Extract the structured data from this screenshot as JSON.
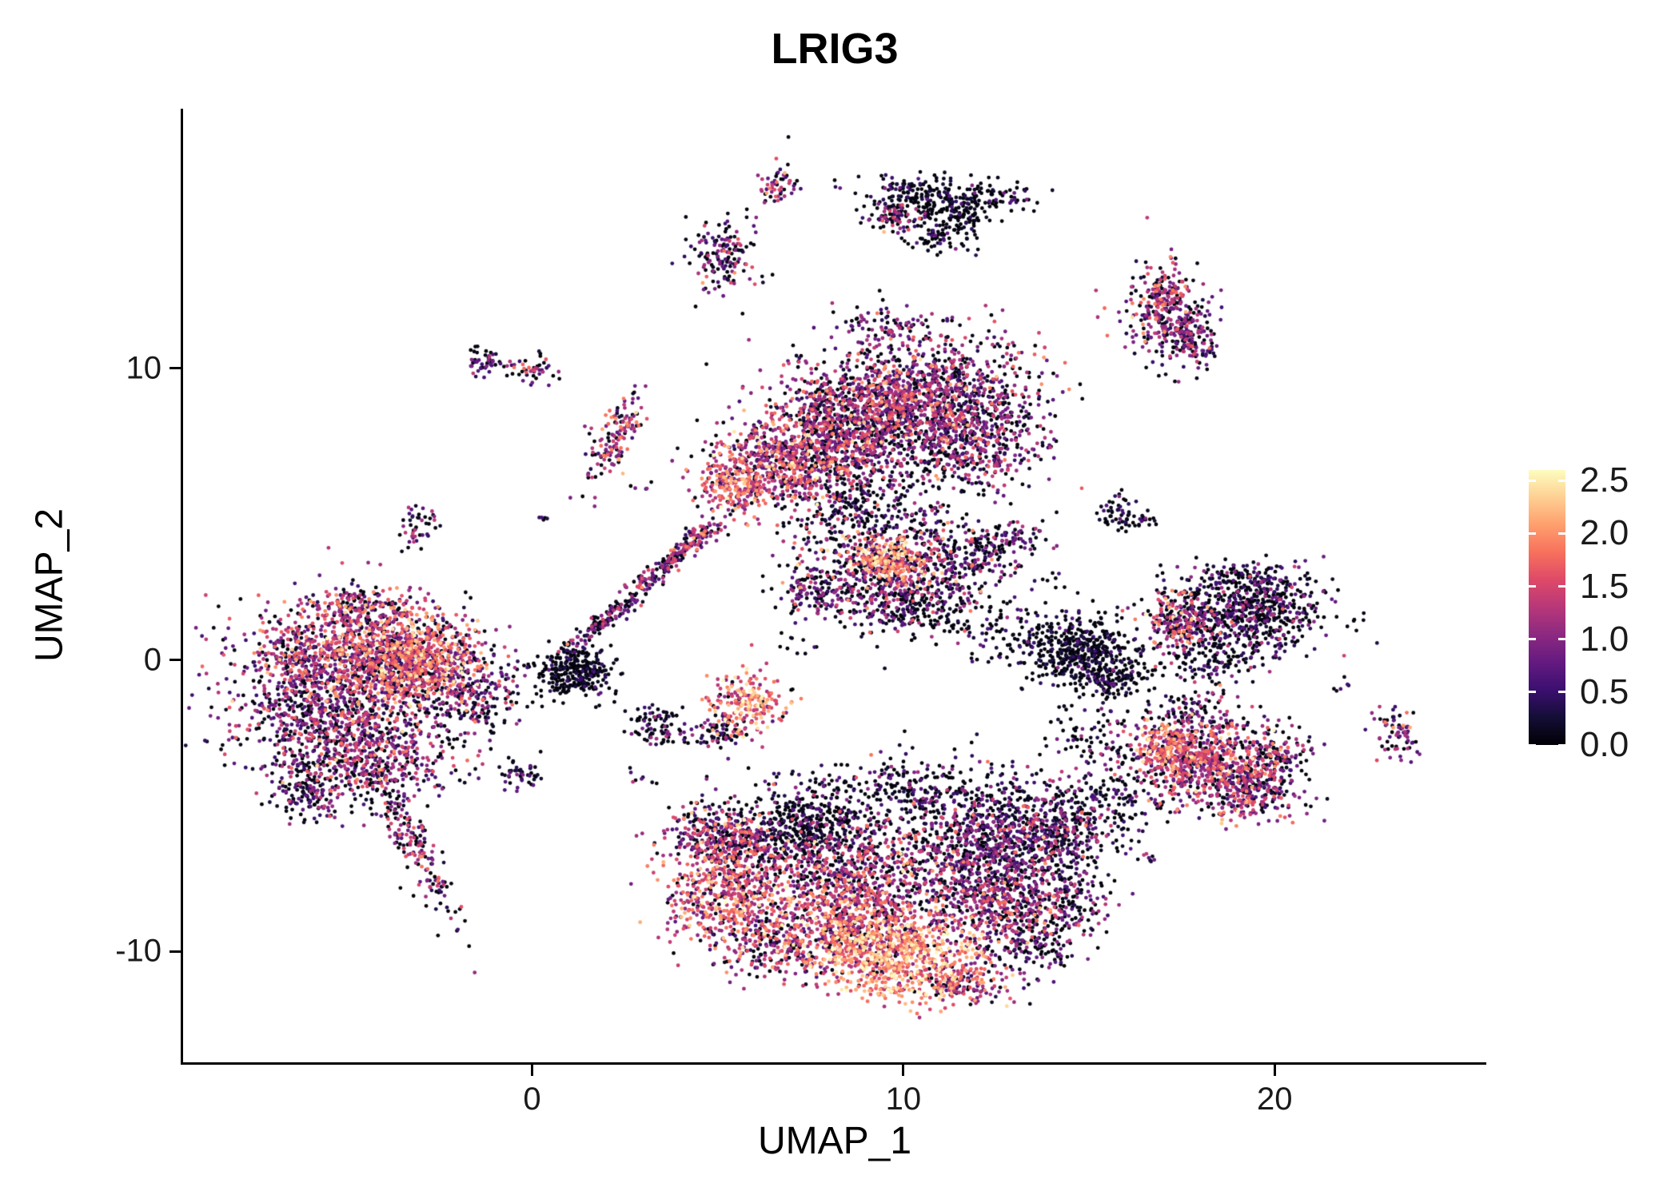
{
  "chart": {
    "title": "LRIG3",
    "xlabel": "UMAP_1",
    "ylabel": "UMAP_2"
  },
  "chart_data": {
    "type": "scatter",
    "title": "LRIG3",
    "subtitle": "",
    "xlabel": "UMAP_1",
    "ylabel": "UMAP_2",
    "xlim": [
      -9.4,
      25.7
    ],
    "ylim": [
      -13.8,
      18.9
    ],
    "x_ticks": [
      0,
      10,
      20
    ],
    "y_ticks": [
      -10,
      0,
      10
    ],
    "grid": false,
    "legend": {
      "position": "right",
      "ticks": [
        "2.5",
        "2.0",
        "1.5",
        "1.0",
        "0.5",
        "0.0"
      ],
      "tick_values": [
        2.5,
        2.0,
        1.5,
        1.0,
        0.5,
        0.0
      ],
      "vmin": 0.0,
      "vmax": 2.6
    },
    "colormap": {
      "name": "magma",
      "stops": [
        "#000004",
        "#140e36",
        "#3b0f70",
        "#641a80",
        "#8c2981",
        "#b73779",
        "#de4968",
        "#f7705c",
        "#fe9f6d",
        "#fecf92",
        "#fcfdbf"
      ]
    },
    "clusters": [
      {
        "name": "left-main-core",
        "cx": -4.8,
        "cy": 0.3,
        "sx": 1.5,
        "sy": 0.95,
        "rot": 0,
        "n": 1100,
        "mean": 1.15,
        "sd": 0.55,
        "zero": 0.22
      },
      {
        "name": "left-main-bright",
        "cx": -3.1,
        "cy": -0.1,
        "sx": 0.9,
        "sy": 0.75,
        "rot": 0,
        "n": 650,
        "mean": 1.55,
        "sd": 0.5,
        "zero": 0.12
      },
      {
        "name": "left-main-lower",
        "cx": -5.6,
        "cy": -1.9,
        "sx": 1.25,
        "sy": 0.95,
        "rot": 0,
        "n": 650,
        "mean": 0.9,
        "sd": 0.5,
        "zero": 0.32
      },
      {
        "name": "left-main-bottom",
        "cx": -4.3,
        "cy": -3.3,
        "sx": 1.15,
        "sy": 0.85,
        "rot": 0,
        "n": 480,
        "mean": 1.0,
        "sd": 0.5,
        "zero": 0.28
      },
      {
        "name": "left-tail-west",
        "cx": -6.0,
        "cy": -4.4,
        "sx": 0.5,
        "sy": 0.55,
        "rot": 0,
        "n": 130,
        "mean": 0.8,
        "sd": 0.45,
        "zero": 0.38
      },
      {
        "name": "left-tail-south",
        "cx": -3.3,
        "cy": -6.1,
        "sx": 1.5,
        "sy": 0.28,
        "rot": -68,
        "n": 210,
        "mean": 0.9,
        "sd": 0.5,
        "zero": 0.3
      },
      {
        "name": "left-east-arm",
        "cx": -1.7,
        "cy": -1.3,
        "sx": 0.7,
        "sy": 0.7,
        "rot": 0,
        "n": 240,
        "mean": 0.7,
        "sd": 0.45,
        "zero": 0.42
      },
      {
        "name": "left-top-edge",
        "cx": -4.6,
        "cy": 1.7,
        "sx": 0.8,
        "sy": 0.4,
        "rot": 0,
        "n": 140,
        "mean": 1.1,
        "sd": 0.5,
        "zero": 0.25
      },
      {
        "name": "sat-left-mid",
        "cx": -3.0,
        "cy": 4.6,
        "sx": 0.28,
        "sy": 0.38,
        "rot": 0,
        "n": 45,
        "mean": 1.0,
        "sd": 0.5,
        "zero": 0.3
      },
      {
        "name": "sat-upperleft-a",
        "cx": -1.3,
        "cy": 10.2,
        "sx": 0.35,
        "sy": 0.28,
        "rot": 0,
        "n": 50,
        "mean": 0.7,
        "sd": 0.45,
        "zero": 0.4
      },
      {
        "name": "sat-upperleft-b",
        "cx": 0.0,
        "cy": 9.9,
        "sx": 0.3,
        "sy": 0.26,
        "rot": 0,
        "n": 45,
        "mean": 1.0,
        "sd": 0.5,
        "zero": 0.3
      },
      {
        "name": "stream-low",
        "cx": 2.1,
        "cy": 1.5,
        "sx": 1.0,
        "sy": 0.14,
        "rot": 45,
        "n": 150,
        "mean": 0.7,
        "sd": 0.45,
        "zero": 0.45
      },
      {
        "name": "stream-high",
        "cx": 3.8,
        "cy": 3.5,
        "sx": 0.9,
        "sy": 0.16,
        "rot": 45,
        "n": 150,
        "mean": 0.9,
        "sd": 0.5,
        "zero": 0.35
      },
      {
        "name": "stream-tip",
        "cx": 4.4,
        "cy": 4.2,
        "sx": 0.35,
        "sy": 0.18,
        "rot": 45,
        "n": 45,
        "mean": 1.4,
        "sd": 0.4,
        "zero": 0.15
      },
      {
        "name": "dense-black-knot",
        "cx": 1.2,
        "cy": -0.4,
        "sx": 0.55,
        "sy": 0.45,
        "rot": 0,
        "n": 300,
        "mean": 0.15,
        "sd": 0.3,
        "zero": 0.72
      },
      {
        "name": "diag-small-pink",
        "cx": 2.3,
        "cy": 7.7,
        "sx": 0.75,
        "sy": 0.3,
        "rot": 65,
        "n": 140,
        "mean": 1.2,
        "sd": 0.5,
        "zero": 0.22
      },
      {
        "name": "top-main-core",
        "cx": 10.3,
        "cy": 9.0,
        "sx": 1.55,
        "sy": 1.05,
        "rot": 0,
        "n": 1350,
        "mean": 1.0,
        "sd": 0.5,
        "zero": 0.28
      },
      {
        "name": "top-main-left",
        "cx": 8.4,
        "cy": 7.7,
        "sx": 1.15,
        "sy": 0.95,
        "rot": 0,
        "n": 850,
        "mean": 1.1,
        "sd": 0.5,
        "zero": 0.28
      },
      {
        "name": "top-main-swleft",
        "cx": 6.7,
        "cy": 6.7,
        "sx": 0.85,
        "sy": 0.8,
        "rot": 0,
        "n": 480,
        "mean": 1.3,
        "sd": 0.5,
        "zero": 0.18
      },
      {
        "name": "top-main-tip",
        "cx": 5.4,
        "cy": 6.1,
        "sx": 0.5,
        "sy": 0.6,
        "rot": 0,
        "n": 200,
        "mean": 1.5,
        "sd": 0.45,
        "zero": 0.12
      },
      {
        "name": "top-main-right",
        "cx": 11.9,
        "cy": 7.3,
        "sx": 0.9,
        "sy": 0.8,
        "rot": 0,
        "n": 420,
        "mean": 0.9,
        "sd": 0.5,
        "zero": 0.32
      },
      {
        "name": "top-main-crown",
        "cx": 9.4,
        "cy": 11.5,
        "sx": 0.55,
        "sy": 0.3,
        "rot": 0,
        "n": 70,
        "mean": 0.8,
        "sd": 0.45,
        "zero": 0.35
      },
      {
        "name": "top-main-skirt",
        "cx": 8.8,
        "cy": 5.2,
        "sx": 1.3,
        "sy": 0.7,
        "rot": 0,
        "n": 300,
        "mean": 0.6,
        "sd": 0.45,
        "zero": 0.5
      },
      {
        "name": "mid-core",
        "cx": 9.8,
        "cy": 3.1,
        "sx": 1.3,
        "sy": 0.8,
        "rot": 0,
        "n": 650,
        "mean": 0.9,
        "sd": 0.5,
        "zero": 0.32
      },
      {
        "name": "mid-hotspot",
        "cx": 9.6,
        "cy": 3.4,
        "sx": 0.5,
        "sy": 0.4,
        "rot": 0,
        "n": 200,
        "mean": 1.9,
        "sd": 0.4,
        "zero": 0.05
      },
      {
        "name": "mid-right-arm",
        "cx": 12.3,
        "cy": 3.9,
        "sx": 0.8,
        "sy": 0.38,
        "rot": 15,
        "n": 170,
        "mean": 0.7,
        "sd": 0.45,
        "zero": 0.4
      },
      {
        "name": "mid-lower",
        "cx": 10.3,
        "cy": 1.8,
        "sx": 1.2,
        "sy": 0.5,
        "rot": 0,
        "n": 240,
        "mean": 0.6,
        "sd": 0.45,
        "zero": 0.5
      },
      {
        "name": "mid-left-bit",
        "cx": 7.6,
        "cy": 2.4,
        "sx": 0.45,
        "sy": 0.5,
        "rot": 0,
        "n": 90,
        "mean": 0.8,
        "sd": 0.45,
        "zero": 0.35
      },
      {
        "name": "pair-right-a",
        "cx": 15.7,
        "cy": 5.1,
        "sx": 0.3,
        "sy": 0.25,
        "rot": 0,
        "n": 40,
        "mean": 0.4,
        "sd": 0.35,
        "zero": 0.55
      },
      {
        "name": "pair-right-b",
        "cx": 16.3,
        "cy": 4.7,
        "sx": 0.25,
        "sy": 0.2,
        "rot": 0,
        "n": 28,
        "mean": 0.4,
        "sd": 0.35,
        "zero": 0.55
      },
      {
        "name": "black-right-main",
        "cx": 14.7,
        "cy": 0.4,
        "sx": 0.75,
        "sy": 0.6,
        "rot": 0,
        "n": 430,
        "mean": 0.25,
        "sd": 0.3,
        "zero": 0.68
      },
      {
        "name": "black-right-tail",
        "cx": 15.6,
        "cy": -0.6,
        "sx": 0.5,
        "sy": 0.4,
        "rot": 0,
        "n": 140,
        "mean": 0.3,
        "sd": 0.3,
        "zero": 0.62
      },
      {
        "name": "righttop-core",
        "cx": 19.2,
        "cy": 1.6,
        "sx": 1.15,
        "sy": 0.7,
        "rot": 0,
        "n": 680,
        "mean": 0.6,
        "sd": 0.45,
        "zero": 0.5
      },
      {
        "name": "righttop-pink-edge",
        "cx": 17.4,
        "cy": 1.3,
        "sx": 0.42,
        "sy": 0.5,
        "rot": 0,
        "n": 150,
        "mean": 1.4,
        "sd": 0.45,
        "zero": 0.15
      },
      {
        "name": "righttop-crown",
        "cx": 19.0,
        "cy": 2.8,
        "sx": 0.8,
        "sy": 0.3,
        "rot": 0,
        "n": 110,
        "mean": 0.5,
        "sd": 0.4,
        "zero": 0.5
      },
      {
        "name": "righttop-skirt",
        "cx": 18.3,
        "cy": 0.0,
        "sx": 0.8,
        "sy": 0.4,
        "rot": 0,
        "n": 110,
        "mean": 0.4,
        "sd": 0.35,
        "zero": 0.58
      },
      {
        "name": "rightmid-core",
        "cx": 18.2,
        "cy": -3.6,
        "sx": 1.05,
        "sy": 0.8,
        "rot": 0,
        "n": 650,
        "mean": 1.2,
        "sd": 0.5,
        "zero": 0.22
      },
      {
        "name": "rightmid-bright",
        "cx": 17.2,
        "cy": -3.0,
        "sx": 0.6,
        "sy": 0.5,
        "rot": 0,
        "n": 240,
        "mean": 1.6,
        "sd": 0.45,
        "zero": 0.08
      },
      {
        "name": "rightmid-lower",
        "cx": 19.3,
        "cy": -4.5,
        "sx": 0.7,
        "sy": 0.5,
        "rot": 0,
        "n": 230,
        "mean": 1.0,
        "sd": 0.5,
        "zero": 0.28
      },
      {
        "name": "rightmid-neck",
        "cx": 17.6,
        "cy": -1.8,
        "sx": 0.7,
        "sy": 0.4,
        "rot": 0,
        "n": 100,
        "mean": 0.6,
        "sd": 0.45,
        "zero": 0.5
      },
      {
        "name": "rightmid-east",
        "cx": 20.1,
        "cy": -3.3,
        "sx": 0.5,
        "sy": 0.5,
        "rot": 0,
        "n": 110,
        "mean": 0.9,
        "sd": 0.5,
        "zero": 0.3
      },
      {
        "name": "bridge-a",
        "cx": 15.8,
        "cy": -4.6,
        "sx": 0.7,
        "sy": 0.55,
        "rot": 0,
        "n": 90,
        "mean": 0.5,
        "sd": 0.4,
        "zero": 0.55
      },
      {
        "name": "bridge-b",
        "cx": 15.0,
        "cy": -2.6,
        "sx": 0.55,
        "sy": 0.5,
        "rot": 0,
        "n": 70,
        "mean": 0.5,
        "sd": 0.4,
        "zero": 0.55
      },
      {
        "name": "bridge-c",
        "cx": 12.7,
        "cy": 0.6,
        "sx": 0.8,
        "sy": 0.5,
        "rot": 0,
        "n": 60,
        "mean": 0.4,
        "sd": 0.4,
        "zero": 0.6
      },
      {
        "name": "bottom-left-pink",
        "cx": 5.3,
        "cy": -7.8,
        "sx": 0.9,
        "sy": 1.15,
        "rot": 0,
        "n": 680,
        "mean": 1.4,
        "sd": 0.5,
        "zero": 0.13
      },
      {
        "name": "bottom-left-top",
        "cx": 5.0,
        "cy": -6.1,
        "sx": 0.7,
        "sy": 0.6,
        "rot": 0,
        "n": 280,
        "mean": 1.0,
        "sd": 0.5,
        "zero": 0.3
      },
      {
        "name": "bottom-black-patch",
        "cx": 7.3,
        "cy": -5.8,
        "sx": 1.0,
        "sy": 0.8,
        "rot": 0,
        "n": 500,
        "mean": 0.3,
        "sd": 0.35,
        "zero": 0.62
      },
      {
        "name": "bottom-center",
        "cx": 8.6,
        "cy": -7.6,
        "sx": 1.2,
        "sy": 1.0,
        "rot": 0,
        "n": 780,
        "mean": 1.2,
        "sd": 0.5,
        "zero": 0.22
      },
      {
        "name": "bottom-bright-south",
        "cx": 9.8,
        "cy": -10.3,
        "sx": 1.2,
        "sy": 0.75,
        "rot": 0,
        "n": 680,
        "mean": 1.9,
        "sd": 0.5,
        "zero": 0.06
      },
      {
        "name": "bottom-bright-mid",
        "cx": 8.7,
        "cy": -9.3,
        "sx": 0.9,
        "sy": 0.7,
        "rot": 0,
        "n": 430,
        "mean": 1.5,
        "sd": 0.5,
        "zero": 0.12
      },
      {
        "name": "bottom-right-purple",
        "cx": 12.3,
        "cy": -6.4,
        "sx": 1.35,
        "sy": 1.0,
        "rot": 0,
        "n": 850,
        "mean": 0.8,
        "sd": 0.5,
        "zero": 0.35
      },
      {
        "name": "bottom-right-lower",
        "cx": 12.6,
        "cy": -8.4,
        "sx": 1.2,
        "sy": 0.8,
        "rot": 0,
        "n": 580,
        "mean": 1.0,
        "sd": 0.5,
        "zero": 0.28
      },
      {
        "name": "bottom-far-east",
        "cx": 14.3,
        "cy": -5.6,
        "sx": 0.8,
        "sy": 0.8,
        "rot": 0,
        "n": 330,
        "mean": 0.7,
        "sd": 0.45,
        "zero": 0.4
      },
      {
        "name": "bottom-top-scatter",
        "cx": 10.5,
        "cy": -4.4,
        "sx": 1.6,
        "sy": 0.6,
        "rot": 0,
        "n": 280,
        "mean": 0.5,
        "sd": 0.4,
        "zero": 0.55
      },
      {
        "name": "bottom-south-tail",
        "cx": 11.6,
        "cy": -11.1,
        "sx": 0.8,
        "sy": 0.4,
        "rot": 0,
        "n": 140,
        "mean": 1.2,
        "sd": 0.5,
        "zero": 0.2
      },
      {
        "name": "bottom-left-south",
        "cx": 6.6,
        "cy": -9.7,
        "sx": 0.6,
        "sy": 0.6,
        "rot": 0,
        "n": 190,
        "mean": 1.1,
        "sd": 0.5,
        "zero": 0.25
      },
      {
        "name": "bottom-se-sparse",
        "cx": 13.4,
        "cy": -9.7,
        "sx": 0.7,
        "sy": 0.5,
        "rot": 0,
        "n": 140,
        "mean": 0.6,
        "sd": 0.45,
        "zero": 0.45
      },
      {
        "name": "bottom-e-sparse",
        "cx": 14.6,
        "cy": -8.2,
        "sx": 0.5,
        "sy": 0.5,
        "rot": 0,
        "n": 60,
        "mean": 0.5,
        "sd": 0.4,
        "zero": 0.5
      },
      {
        "name": "small-orange",
        "cx": 5.8,
        "cy": -1.5,
        "sx": 0.5,
        "sy": 0.55,
        "rot": 0,
        "n": 210,
        "mean": 1.7,
        "sd": 0.45,
        "zero": 0.07
      },
      {
        "name": "small-orange-foot",
        "cx": 4.9,
        "cy": -2.5,
        "sx": 0.35,
        "sy": 0.3,
        "rot": 0,
        "n": 70,
        "mean": 0.6,
        "sd": 0.45,
        "zero": 0.45
      },
      {
        "name": "small-dark-west",
        "cx": 3.4,
        "cy": -2.3,
        "sx": 0.4,
        "sy": 0.35,
        "rot": 0,
        "n": 85,
        "mean": 0.5,
        "sd": 0.4,
        "zero": 0.5
      },
      {
        "name": "tiny-left-low",
        "cx": -0.4,
        "cy": -4.0,
        "sx": 0.33,
        "sy": 0.24,
        "rot": 0,
        "n": 45,
        "mean": 0.4,
        "sd": 0.35,
        "zero": 0.5
      },
      {
        "name": "top-sat-purple",
        "cx": 5.1,
        "cy": 13.9,
        "sx": 0.45,
        "sy": 0.55,
        "rot": 0,
        "n": 150,
        "mean": 0.8,
        "sd": 0.5,
        "zero": 0.38
      },
      {
        "name": "top-sat-pink",
        "cx": 6.6,
        "cy": 16.4,
        "sx": 0.26,
        "sy": 0.36,
        "rot": 0,
        "n": 55,
        "mean": 1.0,
        "sd": 0.5,
        "zero": 0.25
      },
      {
        "name": "ring-top",
        "cx": 10.4,
        "cy": 16.0,
        "sx": 0.8,
        "sy": 0.35,
        "rot": 0,
        "n": 170,
        "mean": 0.3,
        "sd": 0.3,
        "zero": 0.62
      },
      {
        "name": "ring-right",
        "cx": 11.3,
        "cy": 15.3,
        "sx": 0.5,
        "sy": 0.45,
        "rot": 0,
        "n": 130,
        "mean": 0.25,
        "sd": 0.3,
        "zero": 0.68
      },
      {
        "name": "ring-left-pink",
        "cx": 9.7,
        "cy": 15.2,
        "sx": 0.35,
        "sy": 0.3,
        "rot": 0,
        "n": 70,
        "mean": 0.9,
        "sd": 0.5,
        "zero": 0.3
      },
      {
        "name": "ring-bottom",
        "cx": 10.9,
        "cy": 14.5,
        "sx": 0.6,
        "sy": 0.3,
        "rot": 0,
        "n": 60,
        "mean": 0.3,
        "sd": 0.3,
        "zero": 0.62
      },
      {
        "name": "ring-tail",
        "cx": 12.5,
        "cy": 15.9,
        "sx": 0.5,
        "sy": 0.26,
        "rot": 0,
        "n": 60,
        "mean": 0.3,
        "sd": 0.3,
        "zero": 0.62
      },
      {
        "name": "upper-right-core",
        "cx": 17.1,
        "cy": 11.9,
        "sx": 0.55,
        "sy": 0.8,
        "rot": 0,
        "n": 290,
        "mean": 1.0,
        "sd": 0.5,
        "zero": 0.3
      },
      {
        "name": "upper-right-foot",
        "cx": 17.8,
        "cy": 10.8,
        "sx": 0.4,
        "sy": 0.5,
        "rot": 0,
        "n": 110,
        "mean": 0.8,
        "sd": 0.45,
        "zero": 0.35
      },
      {
        "name": "upper-right-crown",
        "cx": 17.0,
        "cy": 12.6,
        "sx": 0.35,
        "sy": 0.3,
        "rot": 0,
        "n": 60,
        "mean": 1.4,
        "sd": 0.45,
        "zero": 0.15
      },
      {
        "name": "far-right-small",
        "cx": 23.3,
        "cy": -2.6,
        "sx": 0.3,
        "sy": 0.45,
        "rot": 0,
        "n": 70,
        "mean": 0.9,
        "sd": 0.5,
        "zero": 0.3
      },
      {
        "name": "stray-a",
        "cx": -6.4,
        "cy": -4.9,
        "sx": 0.15,
        "sy": 0.1,
        "rot": 0,
        "n": 6,
        "mean": 0.6,
        "sd": 0.4,
        "zero": 0.4
      },
      {
        "name": "stray-b",
        "cx": 2.8,
        "cy": -4.0,
        "sx": 0.25,
        "sy": 0.15,
        "rot": 0,
        "n": 8,
        "mean": 0.5,
        "sd": 0.4,
        "zero": 0.5
      },
      {
        "name": "stray-c",
        "cx": 0.3,
        "cy": 4.9,
        "sx": 0.12,
        "sy": 0.1,
        "rot": 0,
        "n": 5,
        "mean": 0.5,
        "sd": 0.4,
        "zero": 0.4
      },
      {
        "name": "stray-d",
        "cx": 21.8,
        "cy": -0.9,
        "sx": 0.2,
        "sy": 0.15,
        "rot": 0,
        "n": 6,
        "mean": 0.4,
        "sd": 0.4,
        "zero": 0.5
      },
      {
        "name": "stray-e",
        "cx": 16.5,
        "cy": -6.6,
        "sx": 0.3,
        "sy": 0.2,
        "rot": 0,
        "n": 8,
        "mean": 0.5,
        "sd": 0.4,
        "zero": 0.5
      },
      {
        "name": "stray-f",
        "cx": 7.2,
        "cy": 0.5,
        "sx": 0.3,
        "sy": 0.3,
        "rot": 0,
        "n": 10,
        "mean": 0.4,
        "sd": 0.4,
        "zero": 0.5
      },
      {
        "name": "stray-g",
        "cx": 13.9,
        "cy": 2.6,
        "sx": 0.3,
        "sy": 0.25,
        "rot": 0,
        "n": 8,
        "mean": 0.4,
        "sd": 0.4,
        "zero": 0.55
      },
      {
        "name": "stray-h",
        "cx": 3.0,
        "cy": 5.9,
        "sx": 0.2,
        "sy": 0.15,
        "rot": 0,
        "n": 5,
        "mean": 0.8,
        "sd": 0.4,
        "zero": 0.3
      }
    ]
  }
}
